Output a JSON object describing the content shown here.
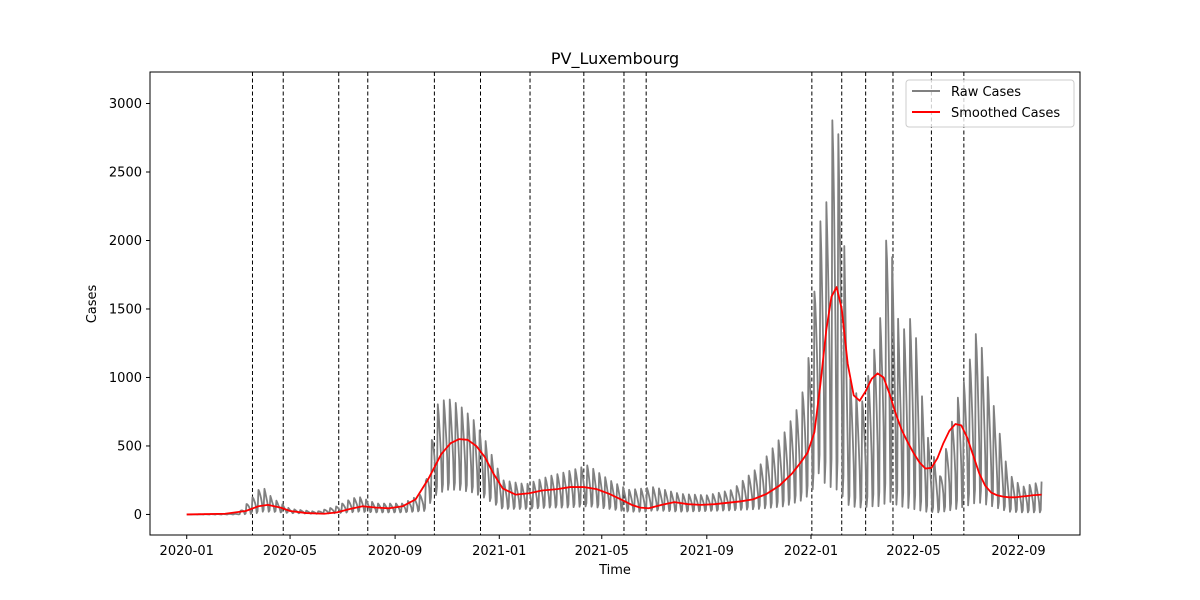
{
  "chart_data": {
    "type": "line",
    "title": "PV_Luxembourg",
    "xlabel": "Time",
    "ylabel": "Cases",
    "x_axis": {
      "kind": "date",
      "range": [
        "2019-11-19",
        "2022-11-12"
      ],
      "ticks": [
        "2020-01",
        "2020-05",
        "2020-09",
        "2021-01",
        "2021-05",
        "2021-09",
        "2022-01",
        "2022-05",
        "2022-09"
      ]
    },
    "y_axis": {
      "range": [
        -150,
        3230
      ],
      "ticks": [
        0,
        500,
        1000,
        1500,
        2000,
        2500,
        3000
      ]
    },
    "grid": false,
    "legend": {
      "position": "top-right",
      "entries": [
        "Raw Cases",
        "Smoothed Cases"
      ]
    },
    "colors": {
      "raw": "#808080",
      "smoothed": "#ff0000",
      "vline": "#000000"
    },
    "vertical_lines": [
      "2020-03-18",
      "2020-04-23",
      "2020-06-27",
      "2020-07-31",
      "2020-10-17",
      "2020-12-10",
      "2021-02-06",
      "2021-04-10",
      "2021-05-27",
      "2021-06-22",
      "2022-01-02",
      "2022-02-06",
      "2022-03-06",
      "2022-04-07",
      "2022-05-22",
      "2022-06-29"
    ],
    "series": [
      {
        "name": "Raw Cases",
        "kind": "weekly-oscillating raw counts (peak/trough envelope)",
        "x": [
          "2020-01-01",
          "2020-03-01",
          "2020-03-20",
          "2020-03-29",
          "2020-04-10",
          "2020-05-01",
          "2020-06-01",
          "2020-06-25",
          "2020-07-10",
          "2020-07-20",
          "2020-08-10",
          "2020-09-10",
          "2020-10-05",
          "2020-10-20",
          "2020-11-01",
          "2020-11-15",
          "2020-12-01",
          "2020-12-15",
          "2021-01-05",
          "2021-02-01",
          "2021-03-01",
          "2021-03-20",
          "2021-04-15",
          "2021-05-10",
          "2021-06-01",
          "2021-06-20",
          "2021-07-01",
          "2021-08-01",
          "2021-09-01",
          "2021-10-01",
          "2021-11-01",
          "2021-12-01",
          "2021-12-20",
          "2022-01-01",
          "2022-01-10",
          "2022-01-20",
          "2022-01-28",
          "2022-02-05",
          "2022-02-15",
          "2022-03-01",
          "2022-03-15",
          "2022-03-25",
          "2022-04-01",
          "2022-04-15",
          "2022-05-01",
          "2022-05-15",
          "2022-06-01",
          "2022-06-20",
          "2022-07-01",
          "2022-07-15",
          "2022-08-01",
          "2022-08-20",
          "2022-09-05",
          "2022-09-28"
        ],
        "peak": [
          0,
          5,
          140,
          210,
          120,
          40,
          20,
          60,
          110,
          130,
          80,
          80,
          160,
          800,
          850,
          800,
          700,
          550,
          250,
          220,
          280,
          310,
          360,
          250,
          180,
          190,
          200,
          150,
          140,
          180,
          350,
          600,
          820,
          1250,
          2100,
          2300,
          3070,
          2600,
          1000,
          800,
          1170,
          1500,
          2200,
          1300,
          1470,
          620,
          280,
          820,
          1000,
          1370,
          850,
          300,
          200,
          240
        ],
        "trough": [
          0,
          0,
          5,
          20,
          20,
          10,
          5,
          10,
          15,
          20,
          15,
          15,
          25,
          150,
          180,
          180,
          160,
          120,
          40,
          40,
          50,
          50,
          60,
          40,
          20,
          20,
          30,
          20,
          25,
          30,
          40,
          60,
          100,
          150,
          300,
          200,
          200,
          150,
          60,
          50,
          60,
          60,
          100,
          60,
          40,
          20,
          15,
          40,
          60,
          90,
          60,
          20,
          15,
          15
        ]
      },
      {
        "name": "Smoothed Cases",
        "x": [
          "2020-01-01",
          "2020-02-15",
          "2020-03-10",
          "2020-03-25",
          "2020-04-05",
          "2020-04-20",
          "2020-05-01",
          "2020-05-20",
          "2020-06-10",
          "2020-06-25",
          "2020-07-10",
          "2020-07-25",
          "2020-08-10",
          "2020-08-25",
          "2020-09-10",
          "2020-09-25",
          "2020-10-10",
          "2020-10-25",
          "2020-11-05",
          "2020-11-15",
          "2020-11-25",
          "2020-12-05",
          "2020-12-15",
          "2020-12-25",
          "2021-01-05",
          "2021-01-20",
          "2021-02-05",
          "2021-02-20",
          "2021-03-10",
          "2021-03-25",
          "2021-04-10",
          "2021-04-25",
          "2021-05-10",
          "2021-05-25",
          "2021-06-05",
          "2021-06-15",
          "2021-06-25",
          "2021-07-10",
          "2021-07-25",
          "2021-08-10",
          "2021-08-25",
          "2021-09-10",
          "2021-09-25",
          "2021-10-10",
          "2021-10-25",
          "2021-11-10",
          "2021-11-25",
          "2021-12-10",
          "2021-12-20",
          "2021-12-28",
          "2022-01-05",
          "2022-01-12",
          "2022-01-19",
          "2022-01-25",
          "2022-01-31",
          "2022-02-06",
          "2022-02-13",
          "2022-02-20",
          "2022-02-27",
          "2022-03-06",
          "2022-03-13",
          "2022-03-20",
          "2022-03-27",
          "2022-04-03",
          "2022-04-10",
          "2022-04-17",
          "2022-04-24",
          "2022-05-01",
          "2022-05-08",
          "2022-05-15",
          "2022-05-22",
          "2022-05-29",
          "2022-06-05",
          "2022-06-12",
          "2022-06-19",
          "2022-06-26",
          "2022-07-03",
          "2022-07-10",
          "2022-07-17",
          "2022-07-24",
          "2022-07-31",
          "2022-08-07",
          "2022-08-14",
          "2022-08-21",
          "2022-08-28",
          "2022-09-04",
          "2022-09-11",
          "2022-09-18",
          "2022-09-28"
        ],
        "y": [
          0,
          5,
          25,
          60,
          70,
          50,
          25,
          10,
          5,
          15,
          40,
          60,
          50,
          45,
          60,
          110,
          260,
          440,
          520,
          550,
          545,
          500,
          420,
          300,
          190,
          145,
          155,
          175,
          185,
          200,
          200,
          185,
          150,
          105,
          70,
          50,
          45,
          70,
          90,
          75,
          70,
          75,
          85,
          95,
          110,
          150,
          210,
          300,
          380,
          450,
          600,
          950,
          1350,
          1590,
          1660,
          1500,
          1100,
          870,
          830,
          900,
          990,
          1030,
          1000,
          880,
          740,
          620,
          530,
          450,
          380,
          335,
          340,
          410,
          520,
          610,
          660,
          650,
          560,
          430,
          300,
          210,
          160,
          140,
          130,
          125,
          125,
          130,
          135,
          140,
          145
        ]
      }
    ]
  }
}
